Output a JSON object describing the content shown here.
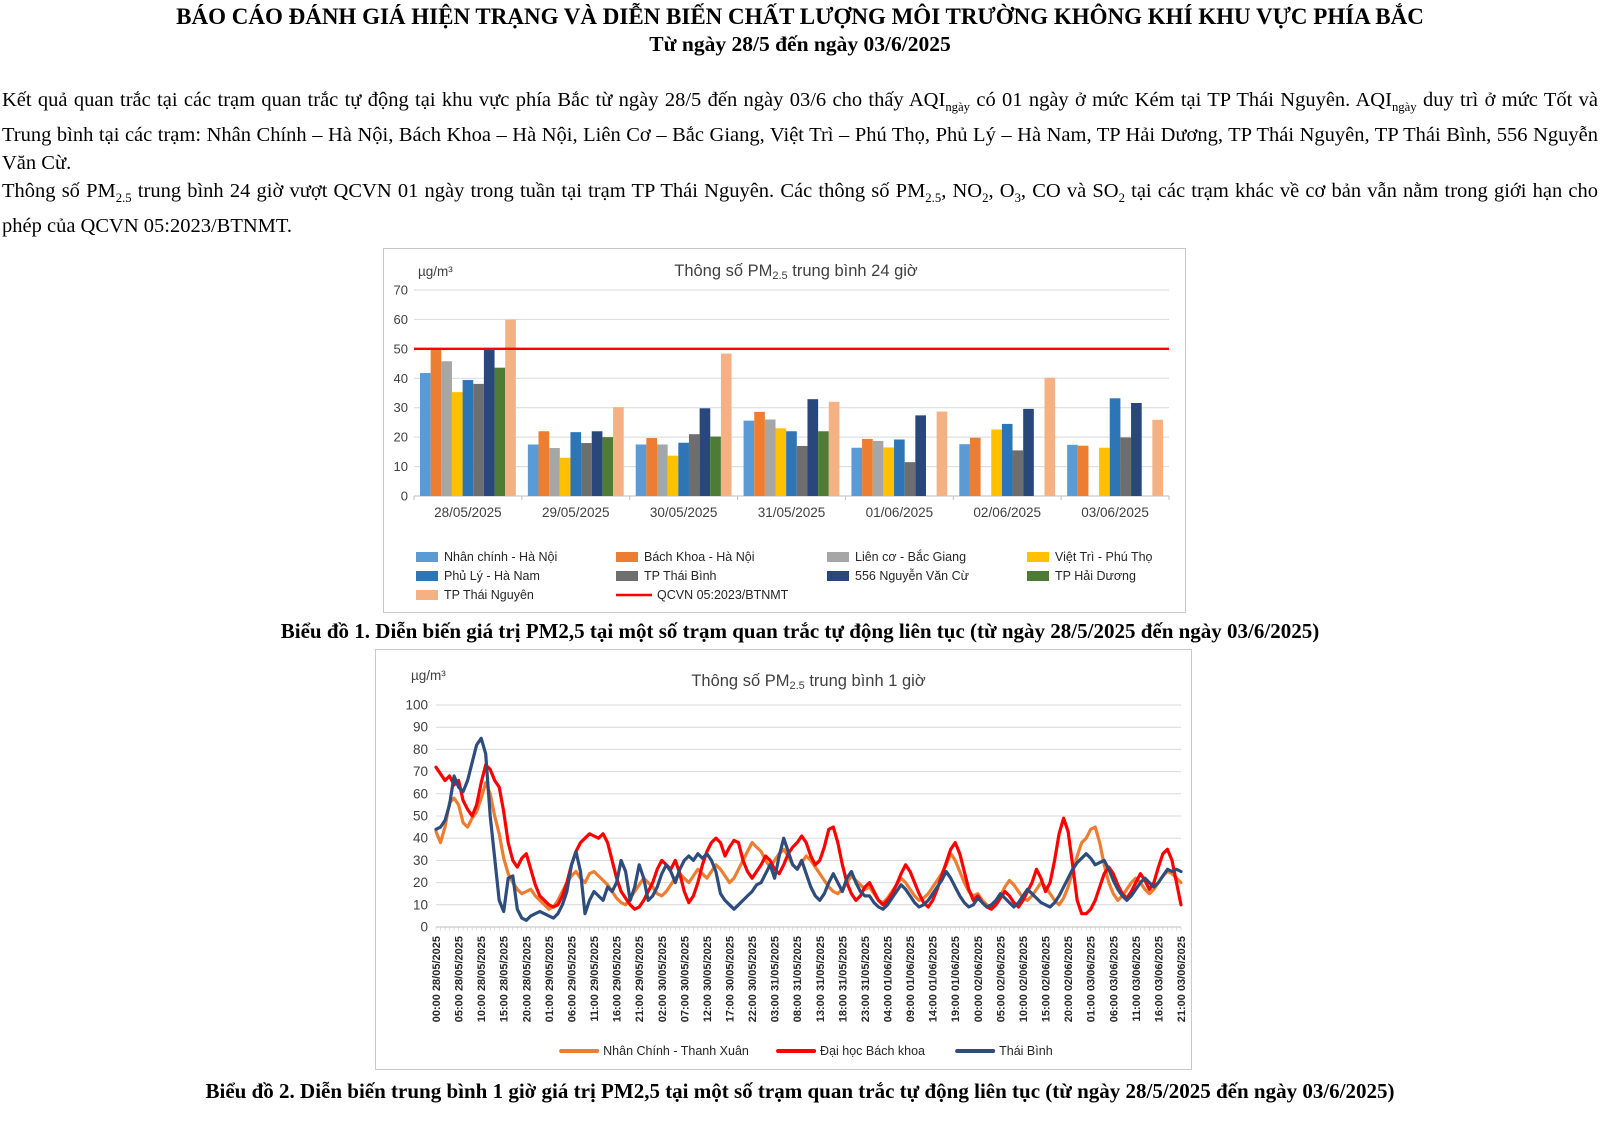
{
  "document": {
    "title_line1": "BÁO CÁO ĐÁNH GIÁ HIỆN TRẠNG VÀ DIỄN BIẾN CHẤT LƯỢNG MÔI TRƯỜNG KHÔNG KHÍ KHU VỰC PHÍA BẮC",
    "title_line2": "Từ ngày 28/5 đến ngày 03/6/2025",
    "paragraph1_segments": [
      {
        "t": "Kết quả quan trắc tại các trạm quan trắc tự động tại khu vực phía Bắc từ ngày 28/5 đến ngày 03/6 cho thấy AQI"
      },
      {
        "t": "ngày",
        "sub": true
      },
      {
        "t": " có 01 ngày ở mức Kém tại TP Thái Nguyên. AQI"
      },
      {
        "t": "ngày",
        "sub": true
      },
      {
        "t": " duy trì ở mức Tốt và Trung bình tại các trạm: Nhân Chính – Hà Nội, Bách Khoa – Hà Nội, Liên Cơ – Bắc Giang, Việt Trì – Phú Thọ, Phủ Lý – Hà Nam, TP Hải Dương, TP Thái Nguyên, TP Thái Bình, 556 Nguyễn Văn Cừ."
      }
    ],
    "paragraph2_segments": [
      {
        "t": "Thông số PM"
      },
      {
        "t": "2.5",
        "sub": true
      },
      {
        "t": " trung bình 24 giờ vượt QCVN 01 ngày trong tuần tại trạm TP Thái Nguyên. Các thông số PM"
      },
      {
        "t": "2.5",
        "sub": true
      },
      {
        "t": ", NO"
      },
      {
        "t": "2",
        "sub": true
      },
      {
        "t": ", O"
      },
      {
        "t": "3",
        "sub": true
      },
      {
        "t": ", CO và SO"
      },
      {
        "t": "2",
        "sub": true
      },
      {
        "t": " tại các trạm khác về cơ bản vẫn nằm trong giới hạn cho phép của QCVN 05:2023/BTNMT."
      }
    ],
    "caption1": "Biểu đồ 1. Diễn biến giá trị PM2,5 tại một số trạm quan trắc tự động liên tục (từ ngày 28/5/2025 đến ngày 03/6/2025)",
    "caption2": "Biểu đồ 2. Diễn biến trung bình 1 giờ giá trị PM2,5 tại một số trạm quan trắc tự động liên tục (từ ngày 28/5/2025 đến ngày 03/6/2025)"
  },
  "chart_data": [
    {
      "type": "bar",
      "title_segments": [
        {
          "t": "Thông số PM"
        },
        {
          "t": "2.5",
          "sub": true
        },
        {
          "t": " trung bình 24 giờ"
        }
      ],
      "unit_label": "µg/m³",
      "ylim": [
        0,
        70
      ],
      "ytick_step": 10,
      "grid": true,
      "legend_position": "bottom",
      "categories": [
        "28/05/2025",
        "29/05/2025",
        "30/05/2025",
        "31/05/2025",
        "01/06/2025",
        "02/06/2025",
        "03/06/2025"
      ],
      "series": [
        {
          "name": "Nhân chính - Hà Nội",
          "color": "#5B9BD5",
          "values": [
            41.8,
            17.5,
            17.5,
            25.6,
            16.4,
            17.6,
            17.4
          ]
        },
        {
          "name": "Bách Khoa - Hà Nội",
          "color": "#ED7D31",
          "values": [
            50.2,
            22.0,
            19.7,
            28.6,
            19.4,
            19.8,
            17.1
          ]
        },
        {
          "name": "Liên cơ - Bắc Giang",
          "color": "#A6A6A6",
          "values": [
            45.8,
            16.3,
            17.5,
            26.0,
            18.7,
            null,
            null
          ]
        },
        {
          "name": "Việt Trì - Phú Thọ",
          "color": "#FFC000",
          "values": [
            35.3,
            13.0,
            13.7,
            23.0,
            16.5,
            22.6,
            16.4
          ]
        },
        {
          "name": "Phủ Lý - Hà Nam",
          "color": "#2E75B6",
          "values": [
            39.4,
            21.7,
            18.1,
            22.0,
            19.2,
            24.5,
            33.2
          ]
        },
        {
          "name": "TP Thái Bình",
          "color": "#6E6E6E",
          "values": [
            38.1,
            18.0,
            21.0,
            17.0,
            11.5,
            15.5,
            19.9
          ]
        },
        {
          "name": "556 Nguyễn Văn Cừ",
          "color": "#29477B",
          "values": [
            49.6,
            22.0,
            29.8,
            32.9,
            27.4,
            29.6,
            31.6
          ]
        },
        {
          "name": "TP Hải Dương",
          "color": "#4E7B35",
          "values": [
            43.6,
            20.0,
            20.2,
            22.0,
            null,
            null,
            null
          ]
        },
        {
          "name": "TP Thái Nguyên",
          "color": "#F4B183",
          "values": [
            59.9,
            30.2,
            48.4,
            32.0,
            28.7,
            40.2,
            25.9
          ]
        }
      ],
      "reference_line": {
        "label": "QCVN 05:2023/BTNMT",
        "value": 50,
        "color": "#FF0000"
      }
    },
    {
      "type": "line",
      "title_segments": [
        {
          "t": "Thông số PM"
        },
        {
          "t": "2.5",
          "sub": true
        },
        {
          "t": " trung bình 1 giờ"
        }
      ],
      "unit_label": "µg/m³",
      "ylim": [
        0,
        100
      ],
      "ytick_step": 10,
      "grid": true,
      "legend_position": "bottom",
      "x_points_per_label": 5,
      "x_tick_labels": [
        "00:00 28/05/2025",
        "05:00 28/05/2025",
        "10:00 28/05/2025",
        "15:00 28/05/2025",
        "20:00 28/05/2025",
        "01:00 29/05/2025",
        "06:00 29/05/2025",
        "11:00 29/05/2025",
        "16:00 29/05/2025",
        "21:00 29/05/2025",
        "02:00 30/05/2025",
        "07:00 30/05/2025",
        "12:00 30/05/2025",
        "17:00 30/05/2025",
        "22:00 30/05/2025",
        "03:00 31/05/2025",
        "08:00 31/05/2025",
        "13:00 31/05/2025",
        "18:00 31/05/2025",
        "23:00 31/05/2025",
        "04:00 01/06/2025",
        "09:00 01/06/2025",
        "14:00 01/06/2025",
        "19:00 01/06/2025",
        "00:00 02/06/2025",
        "05:00 02/06/2025",
        "10:00 02/06/2025",
        "15:00 02/06/2025",
        "20:00 02/06/2025",
        "01:00 03/06/2025",
        "06:00 03/06/2025",
        "11:00 03/06/2025",
        "16:00 03/06/2025",
        "21:00 03/06/2025"
      ],
      "series": [
        {
          "name": "Nhân Chính - Thanh Xuân",
          "color": "#ED7D31",
          "values": [
            43,
            38,
            45,
            56,
            58,
            55,
            47,
            45,
            49,
            52,
            58,
            65,
            60,
            50,
            42,
            31,
            24,
            20,
            17,
            15,
            16,
            17,
            14,
            12,
            10,
            8,
            9,
            12,
            16,
            20,
            23,
            25,
            22,
            20,
            24,
            25,
            23,
            21,
            19,
            16,
            13,
            11,
            10,
            13,
            16,
            19,
            22,
            20,
            18,
            15,
            14,
            16,
            19,
            22,
            24,
            22,
            20,
            23,
            26,
            24,
            22,
            25,
            28,
            26,
            23,
            20,
            22,
            26,
            30,
            34,
            38,
            36,
            34,
            30,
            27,
            30,
            33,
            35,
            32,
            28,
            26,
            29,
            32,
            30,
            27,
            24,
            21,
            18,
            16,
            15,
            17,
            20,
            23,
            21,
            19,
            17,
            18,
            15,
            12,
            11,
            13,
            16,
            19,
            22,
            20,
            17,
            14,
            12,
            13,
            15,
            18,
            21,
            24,
            28,
            33,
            30,
            25,
            20,
            16,
            14,
            15,
            12,
            10,
            9,
            11,
            14,
            18,
            21,
            19,
            16,
            13,
            12,
            14,
            17,
            20,
            18,
            15,
            12,
            10,
            13,
            18,
            25,
            32,
            38,
            40,
            44,
            45,
            38,
            28,
            20,
            15,
            12,
            14,
            17,
            20,
            22,
            20,
            17,
            15,
            17,
            20,
            23,
            25,
            24,
            22,
            20
          ]
        },
        {
          "name": "Đại học Bách khoa",
          "color": "#FF0000",
          "values": [
            72,
            69,
            66,
            68,
            64,
            66,
            57,
            53,
            50,
            55,
            65,
            73,
            71,
            66,
            63,
            52,
            38,
            30,
            27,
            31,
            33,
            26,
            19,
            14,
            12,
            10,
            9,
            10,
            14,
            20,
            28,
            34,
            38,
            40,
            42,
            41,
            40,
            42,
            38,
            30,
            22,
            16,
            13,
            10,
            8,
            9,
            12,
            16,
            20,
            26,
            30,
            28,
            26,
            30,
            24,
            16,
            11,
            14,
            20,
            28,
            34,
            38,
            40,
            38,
            32,
            36,
            39,
            38,
            30,
            25,
            22,
            25,
            28,
            32,
            30,
            26,
            24,
            28,
            33,
            36,
            38,
            41,
            38,
            32,
            28,
            30,
            36,
            44,
            45,
            38,
            28,
            20,
            15,
            12,
            14,
            18,
            20,
            16,
            12,
            10,
            12,
            15,
            19,
            24,
            28,
            25,
            20,
            15,
            11,
            9,
            12,
            17,
            23,
            29,
            35,
            38,
            33,
            25,
            17,
            12,
            14,
            11,
            9,
            8,
            10,
            13,
            16,
            14,
            11,
            9,
            12,
            16,
            20,
            26,
            22,
            16,
            20,
            30,
            42,
            49,
            43,
            28,
            12,
            6,
            6,
            8,
            12,
            18,
            24,
            27,
            24,
            19,
            15,
            13,
            16,
            20,
            24,
            21,
            17,
            20,
            27,
            33,
            35,
            30,
            20,
            10
          ]
        },
        {
          "name": "Thái Bình",
          "color": "#2E4D7D",
          "values": [
            44,
            45,
            48,
            55,
            68,
            63,
            61,
            66,
            74,
            82,
            85,
            78,
            50,
            31,
            12,
            7,
            22,
            23,
            8,
            4,
            3,
            5,
            6,
            7,
            6,
            5,
            4,
            6,
            10,
            16,
            28,
            34,
            25,
            6,
            12,
            16,
            14,
            12,
            18,
            16,
            20,
            30,
            25,
            12,
            18,
            28,
            22,
            12,
            14,
            18,
            24,
            28,
            25,
            20,
            26,
            30,
            32,
            30,
            33,
            31,
            33,
            30,
            25,
            15,
            12,
            10,
            8,
            10,
            12,
            14,
            16,
            19,
            20,
            24,
            28,
            22,
            32,
            40,
            34,
            28,
            26,
            30,
            24,
            18,
            14,
            12,
            15,
            20,
            24,
            20,
            16,
            22,
            25,
            20,
            16,
            14,
            14,
            11,
            9,
            8,
            10,
            13,
            16,
            19,
            17,
            14,
            11,
            9,
            10,
            12,
            15,
            18,
            21,
            25,
            22,
            18,
            14,
            11,
            9,
            10,
            13,
            11,
            9,
            10,
            12,
            15,
            13,
            11,
            9,
            11,
            14,
            17,
            15,
            13,
            11,
            10,
            9,
            11,
            14,
            18,
            22,
            26,
            29,
            31,
            33,
            31,
            28,
            29,
            30,
            26,
            21,
            17,
            14,
            12,
            14,
            17,
            20,
            22,
            20,
            18,
            20,
            23,
            26,
            25,
            26,
            25
          ]
        }
      ]
    }
  ]
}
